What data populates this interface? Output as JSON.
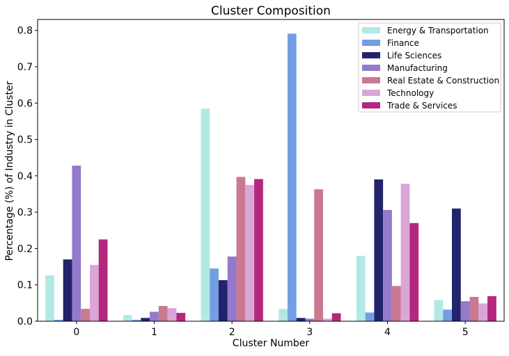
{
  "chart_data": {
    "type": "bar",
    "title": "Cluster Composition",
    "xlabel": "Cluster Number",
    "ylabel": "Percentage (%) of Industry in Cluster",
    "ylim": [
      0,
      0.83
    ],
    "yticks": [
      0.0,
      0.1,
      0.2,
      0.3,
      0.4,
      0.5,
      0.6,
      0.7,
      0.8
    ],
    "ytick_labels": [
      "0.0",
      "0.1",
      "0.2",
      "0.3",
      "0.4",
      "0.5",
      "0.6",
      "0.7",
      "0.8"
    ],
    "categories": [
      "0",
      "1",
      "2",
      "3",
      "4",
      "5"
    ],
    "grid": false,
    "legend_position": "top-right",
    "series": [
      {
        "name": "Energy & Transportation",
        "color": "#b2e8e6",
        "values": [
          0.126,
          0.017,
          0.585,
          0.034,
          0.18,
          0.058
        ]
      },
      {
        "name": "Finance",
        "color": "#739ee2",
        "values": [
          0.004,
          0.004,
          0.145,
          0.791,
          0.024,
          0.032
        ]
      },
      {
        "name": "Life Sciences",
        "color": "#23236b",
        "values": [
          0.17,
          0.009,
          0.113,
          0.009,
          0.39,
          0.31
        ]
      },
      {
        "name": "Manufacturing",
        "color": "#937acd",
        "values": [
          0.428,
          0.026,
          0.178,
          0.007,
          0.306,
          0.055
        ]
      },
      {
        "name": "Real Estate & Construction",
        "color": "#cb7891",
        "values": [
          0.034,
          0.042,
          0.397,
          0.363,
          0.097,
          0.067
        ]
      },
      {
        "name": "Technology",
        "color": "#daa6d8",
        "values": [
          0.155,
          0.036,
          0.375,
          0.007,
          0.378,
          0.049
        ]
      },
      {
        "name": "Trade & Services",
        "color": "#b4277f",
        "values": [
          0.225,
          0.023,
          0.391,
          0.022,
          0.27,
          0.069
        ]
      }
    ]
  }
}
